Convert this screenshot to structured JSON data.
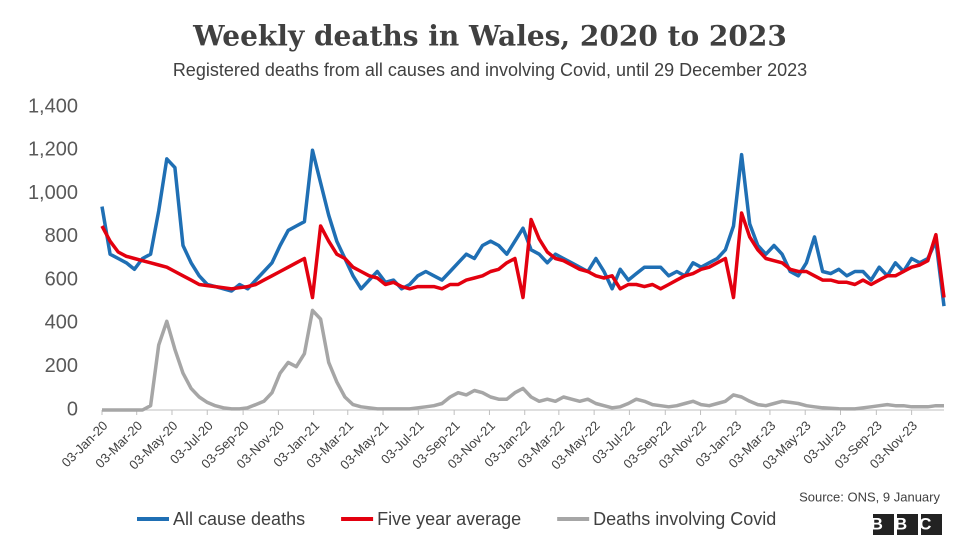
{
  "chart_data": {
    "type": "line",
    "title": "Weekly deaths in Wales, 2020 to 2023",
    "subtitle": "Registered deaths from all causes and involving Covid, until 29 December 2023",
    "source": "Source: ONS, 9 January",
    "logo": "BBC",
    "x": [
      "03-Jan-20",
      "17-Jan-20",
      "31-Jan-20",
      "14-Feb-20",
      "28-Feb-20",
      "13-Mar-20",
      "27-Mar-20",
      "10-Apr-20",
      "24-Apr-20",
      "08-May-20",
      "22-May-20",
      "05-Jun-20",
      "19-Jun-20",
      "03-Jul-20",
      "17-Jul-20",
      "31-Jul-20",
      "14-Aug-20",
      "28-Aug-20",
      "11-Sep-20",
      "25-Sep-20",
      "09-Oct-20",
      "23-Oct-20",
      "06-Nov-20",
      "20-Nov-20",
      "04-Dec-20",
      "18-Dec-20",
      "01-Jan-21",
      "15-Jan-21",
      "29-Jan-21",
      "12-Feb-21",
      "26-Feb-21",
      "12-Mar-21",
      "26-Mar-21",
      "09-Apr-21",
      "23-Apr-21",
      "07-May-21",
      "21-May-21",
      "04-Jun-21",
      "18-Jun-21",
      "02-Jul-21",
      "16-Jul-21",
      "30-Jul-21",
      "13-Aug-21",
      "27-Aug-21",
      "10-Sep-21",
      "24-Sep-21",
      "08-Oct-21",
      "22-Oct-21",
      "05-Nov-21",
      "19-Nov-21",
      "03-Dec-21",
      "17-Dec-21",
      "31-Dec-21",
      "14-Jan-22",
      "28-Jan-22",
      "11-Feb-22",
      "25-Feb-22",
      "11-Mar-22",
      "25-Mar-22",
      "08-Apr-22",
      "22-Apr-22",
      "06-May-22",
      "20-May-22",
      "03-Jun-22",
      "17-Jun-22",
      "01-Jul-22",
      "15-Jul-22",
      "29-Jul-22",
      "12-Aug-22",
      "26-Aug-22",
      "09-Sep-22",
      "23-Sep-22",
      "07-Oct-22",
      "21-Oct-22",
      "04-Nov-22",
      "18-Nov-22",
      "02-Dec-22",
      "16-Dec-22",
      "30-Dec-22",
      "13-Jan-23",
      "27-Jan-23",
      "10-Feb-23",
      "24-Feb-23",
      "10-Mar-23",
      "24-Mar-23",
      "07-Apr-23",
      "21-Apr-23",
      "05-May-23",
      "19-May-23",
      "02-Jun-23",
      "16-Jun-23",
      "30-Jun-23",
      "14-Jul-23",
      "28-Jul-23",
      "11-Aug-23",
      "25-Aug-23",
      "08-Sep-23",
      "22-Sep-23",
      "06-Oct-23",
      "20-Oct-23",
      "03-Nov-23",
      "17-Nov-23",
      "01-Dec-23",
      "15-Dec-23",
      "29-Dec-23"
    ],
    "series": [
      {
        "name": "All cause deaths",
        "color": "#1f6fb4",
        "values": [
          940,
          720,
          700,
          680,
          650,
          700,
          720,
          920,
          1160,
          1120,
          760,
          680,
          620,
          580,
          570,
          560,
          550,
          580,
          560,
          600,
          640,
          680,
          760,
          830,
          850,
          870,
          1200,
          1050,
          900,
          780,
          700,
          620,
          560,
          600,
          640,
          590,
          600,
          560,
          580,
          620,
          640,
          620,
          600,
          640,
          680,
          720,
          700,
          760,
          780,
          760,
          720,
          780,
          840,
          740,
          720,
          680,
          720,
          700,
          680,
          660,
          640,
          700,
          640,
          560,
          650,
          600,
          630,
          660,
          660,
          660,
          620,
          640,
          620,
          680,
          660,
          680,
          700,
          740,
          850,
          1180,
          860,
          760,
          720,
          760,
          720,
          640,
          620,
          680,
          800,
          640,
          630,
          650,
          620,
          640,
          640,
          600,
          660,
          620,
          680,
          640,
          700,
          680,
          700,
          780,
          480
        ]
      },
      {
        "name": "Five year average",
        "color": "#e3000f",
        "values": [
          850,
          780,
          730,
          710,
          700,
          690,
          680,
          670,
          660,
          640,
          620,
          600,
          580,
          575,
          570,
          565,
          560,
          565,
          570,
          580,
          600,
          620,
          640,
          660,
          680,
          700,
          520,
          850,
          780,
          720,
          700,
          660,
          640,
          620,
          610,
          580,
          590,
          570,
          560,
          570,
          570,
          570,
          560,
          580,
          580,
          600,
          610,
          620,
          640,
          650,
          680,
          700,
          520,
          880,
          790,
          730,
          700,
          690,
          670,
          650,
          640,
          620,
          610,
          620,
          560,
          580,
          580,
          570,
          580,
          560,
          580,
          600,
          620,
          630,
          650,
          660,
          680,
          700,
          520,
          910,
          800,
          740,
          700,
          690,
          680,
          650,
          640,
          640,
          620,
          600,
          600,
          590,
          590,
          580,
          600,
          580,
          600,
          620,
          620,
          640,
          660,
          670,
          690,
          810,
          520
        ]
      },
      {
        "name": "Deaths involving Covid",
        "color": "#a6a6a6",
        "values": [
          0,
          0,
          0,
          0,
          0,
          0,
          20,
          300,
          410,
          280,
          170,
          100,
          60,
          35,
          20,
          10,
          5,
          5,
          10,
          25,
          40,
          80,
          170,
          220,
          200,
          260,
          460,
          420,
          220,
          130,
          60,
          25,
          15,
          10,
          5,
          5,
          5,
          5,
          5,
          10,
          15,
          20,
          30,
          60,
          80,
          70,
          90,
          80,
          60,
          50,
          50,
          80,
          100,
          60,
          40,
          50,
          40,
          60,
          50,
          40,
          50,
          30,
          20,
          10,
          15,
          30,
          50,
          40,
          25,
          20,
          15,
          20,
          30,
          40,
          25,
          20,
          30,
          40,
          70,
          60,
          40,
          25,
          20,
          30,
          40,
          35,
          30,
          20,
          15,
          10,
          8,
          6,
          5,
          5,
          10,
          15,
          20,
          25,
          20,
          20,
          15,
          15,
          15,
          20,
          20
        ]
      }
    ],
    "xlim": [
      "03-Jan-20",
      "29-Dec-23"
    ],
    "xticks": [
      "03-Jan-20",
      "03-Mar-20",
      "03-May-20",
      "03-Jul-20",
      "03-Sep-20",
      "03-Nov-20",
      "03-Jan-21",
      "03-Mar-21",
      "03-May-21",
      "03-Jul-21",
      "03-Sep-21",
      "03-Nov-21",
      "03-Jan-22",
      "03-Mar-22",
      "03-May-22",
      "03-Jul-22",
      "03-Sep-22",
      "03-Nov-22",
      "03-Jan-23",
      "03-Mar-23",
      "03-May-23",
      "03-Jul-23",
      "03-Sep-23",
      "03-Nov-23"
    ],
    "ylim": [
      0,
      1400
    ],
    "yticks": [
      0,
      200,
      400,
      600,
      800,
      {
        "value": 1000,
        "label": "1,000"
      },
      {
        "value": 1200,
        "label": "1,200"
      },
      {
        "value": 1400,
        "label": "1,400"
      }
    ],
    "grid": false
  }
}
